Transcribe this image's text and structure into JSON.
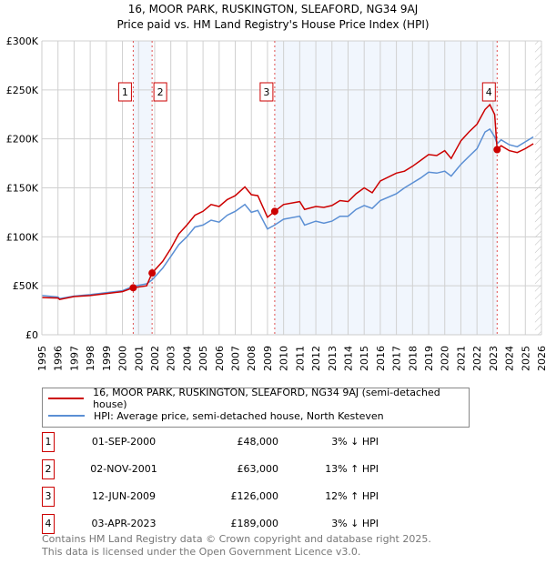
{
  "chart_data": {
    "type": "line",
    "title": "16, MOOR PARK, RUSKINGTON, SLEAFORD, NG34 9AJ",
    "subtitle": "Price paid vs. HM Land Registry's House Price Index (HPI)",
    "xlim": [
      1995,
      2026
    ],
    "ylim": [
      0,
      300000
    ],
    "x_ticks": [
      "1995",
      "1996",
      "1997",
      "1998",
      "1999",
      "2000",
      "2001",
      "2002",
      "2003",
      "2004",
      "2005",
      "2006",
      "2007",
      "2008",
      "2009",
      "2010",
      "2011",
      "2012",
      "2013",
      "2014",
      "2015",
      "2016",
      "2017",
      "2018",
      "2019",
      "2020",
      "2021",
      "2022",
      "2023",
      "2024",
      "2025",
      "2026"
    ],
    "y_ticks": [
      {
        "v": 0,
        "label": "£0"
      },
      {
        "v": 50000,
        "label": "£50K"
      },
      {
        "v": 100000,
        "label": "£100K"
      },
      {
        "v": 150000,
        "label": "£150K"
      },
      {
        "v": 200000,
        "label": "£200K"
      },
      {
        "v": 250000,
        "label": "£250K"
      },
      {
        "v": 300000,
        "label": "£300K"
      }
    ],
    "grid": true,
    "forecast_hatch_from": 2025.6,
    "series": [
      {
        "name": "16, MOOR PARK, RUSKINGTON, SLEAFORD, NG34 9AJ (semi-detached house)",
        "color": "#cc0000",
        "x": [
          1995,
          1996,
          1996.1,
          1997,
          1998,
          1999,
          2000,
          2000.67,
          2001.5,
          2001.84,
          2002.5,
          2003,
          2003.5,
          2004,
          2004.5,
          2005,
          2005.5,
          2006,
          2006.5,
          2007,
          2007.6,
          2008,
          2008.4,
          2009,
          2009.45,
          2010,
          2011,
          2011.3,
          2012,
          2012.5,
          2013,
          2013.5,
          2014,
          2014.5,
          2015,
          2015.5,
          2016,
          2017,
          2017.5,
          2018,
          2018.5,
          2019,
          2019.5,
          2020,
          2020.4,
          2020.8,
          2021,
          2021.5,
          2022,
          2022.5,
          2022.8,
          2023.1,
          2023.25,
          2023.5,
          2024,
          2024.5,
          2025,
          2025.5
        ],
        "y": [
          38,
          37.5,
          36,
          39,
          40,
          42,
          44,
          48,
          50,
          63,
          75,
          88,
          103,
          112,
          122,
          126,
          133,
          131,
          138,
          142,
          151,
          143,
          142,
          120,
          126,
          133,
          136,
          128,
          131,
          130,
          132,
          137,
          136,
          144,
          150,
          145,
          157,
          165,
          167,
          172,
          178,
          184,
          183,
          188,
          180,
          192,
          198,
          207,
          215,
          230,
          235,
          225,
          189,
          193,
          188,
          186,
          190,
          195
        ]
      },
      {
        "name": "HPI: Average price, semi-detached house, North Kesteven",
        "color": "#5b8fd4",
        "x": [
          1995,
          1996,
          1996.1,
          1997,
          1998,
          1999,
          2000,
          2000.67,
          2001.5,
          2001.84,
          2002.5,
          2003,
          2003.5,
          2004,
          2004.5,
          2005,
          2005.5,
          2006,
          2006.5,
          2007,
          2007.6,
          2008,
          2008.4,
          2009,
          2009.45,
          2010,
          2011,
          2011.3,
          2012,
          2012.5,
          2013,
          2013.5,
          2014,
          2014.5,
          2015,
          2015.5,
          2016,
          2017,
          2017.5,
          2018,
          2018.5,
          2019,
          2019.5,
          2020,
          2020.4,
          2020.8,
          2021,
          2021.5,
          2022,
          2022.5,
          2022.8,
          2023.1,
          2023.25,
          2023.5,
          2024,
          2024.5,
          2025,
          2025.5
        ],
        "y": [
          40,
          38.5,
          37,
          39.5,
          41,
          43,
          45,
          49.5,
          52,
          56,
          68,
          80,
          92,
          100,
          110,
          112,
          117,
          115,
          122,
          126,
          133,
          125,
          127,
          108,
          112,
          118,
          121,
          112,
          116,
          114,
          116,
          121,
          121,
          128,
          132,
          129,
          137,
          144,
          150,
          155,
          160,
          166,
          165,
          167,
          162,
          170,
          174,
          182,
          190,
          207,
          210,
          202,
          195,
          199,
          194,
          192,
          197,
          202
        ]
      }
    ],
    "y_units": "thousands GBP",
    "sales": [
      {
        "n": "1",
        "x": 2000.67,
        "date": "01-SEP-2000",
        "price": "£48,000",
        "value": 48000,
        "hpi": "3% ↓ HPI"
      },
      {
        "n": "2",
        "x": 2001.84,
        "date": "02-NOV-2001",
        "price": "£63,000",
        "value": 63000,
        "hpi": "13% ↑ HPI"
      },
      {
        "n": "3",
        "x": 2009.45,
        "date": "12-JUN-2009",
        "price": "£126,000",
        "value": 126000,
        "hpi": "12% ↑ HPI"
      },
      {
        "n": "4",
        "x": 2023.25,
        "date": "03-APR-2023",
        "price": "£189,000",
        "value": 189000,
        "hpi": "3% ↓ HPI"
      }
    ],
    "legend_position": "below"
  },
  "footer": {
    "line1": "Contains HM Land Registry data © Crown copyright and database right 2025.",
    "line2": "This data is licensed under the Open Government Licence v3.0."
  }
}
